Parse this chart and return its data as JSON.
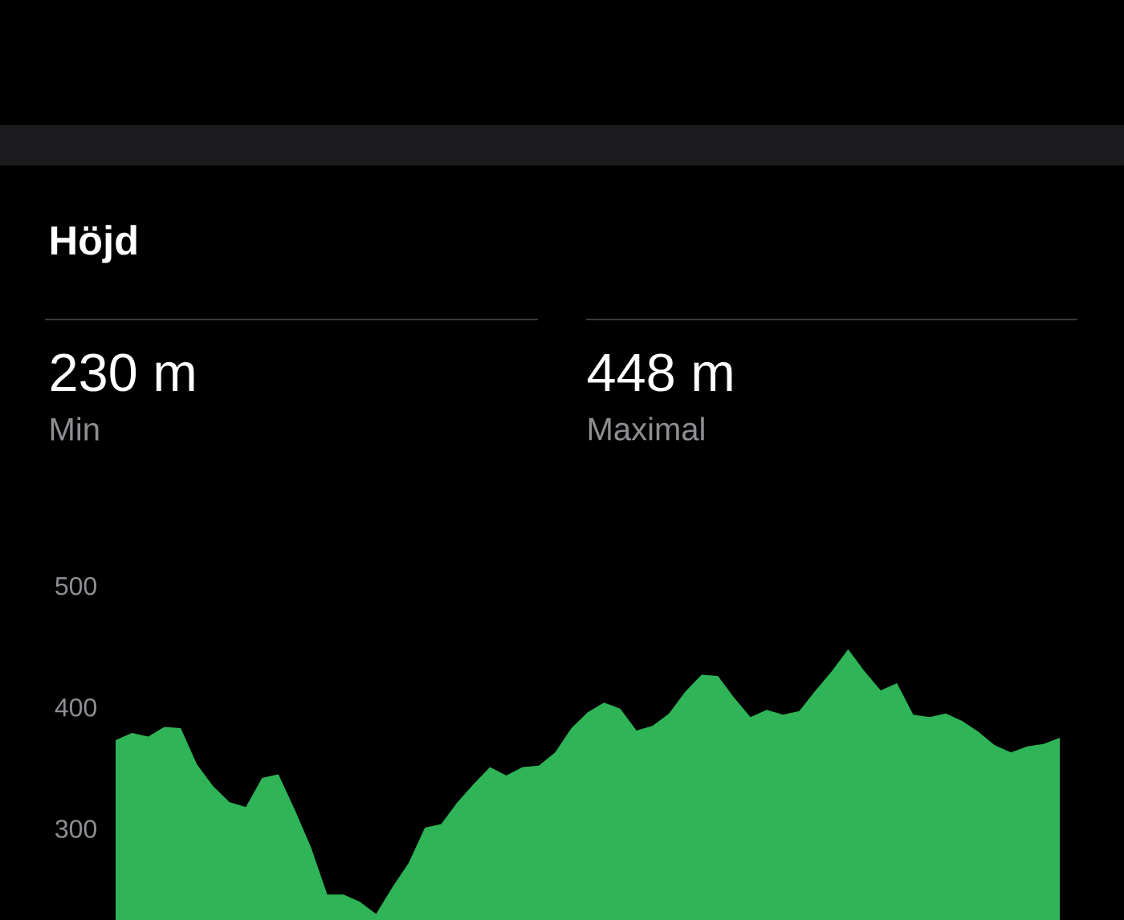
{
  "chart_data": {
    "type": "area",
    "title": "Höjd",
    "annotations": [
      "230 m",
      "Min",
      "448 m",
      "Maximal"
    ],
    "categories": [
      null,
      null,
      null,
      null,
      null,
      null,
      null,
      null,
      null,
      null,
      null,
      null,
      null,
      null,
      null,
      null,
      null,
      null,
      null,
      null,
      null,
      null,
      null,
      null,
      null,
      null,
      null,
      null,
      null,
      null,
      null,
      null,
      null,
      null,
      null,
      null,
      null,
      null,
      null,
      null,
      null,
      null,
      null,
      null,
      null,
      null,
      null,
      null,
      null,
      null,
      null,
      null,
      null,
      null,
      null,
      null,
      null,
      null,
      null
    ],
    "values": [
      373,
      379,
      376,
      384,
      383,
      353,
      335,
      322,
      318,
      342,
      345,
      316,
      285,
      246,
      246,
      240,
      230,
      252,
      272,
      301,
      304,
      322,
      337,
      351,
      344,
      351,
      352,
      363,
      383,
      396,
      404,
      399,
      381,
      385,
      395,
      413,
      427,
      426,
      408,
      392,
      398,
      394,
      397,
      414,
      430,
      448,
      430,
      414,
      420,
      394,
      392,
      395,
      389,
      380,
      369,
      363,
      368,
      370,
      375
    ],
    "color": "#2fb457",
    "ylim": [
      225,
      500
    ],
    "yticks": [
      300,
      400,
      500
    ],
    "tick_labels": "y"
  }
}
